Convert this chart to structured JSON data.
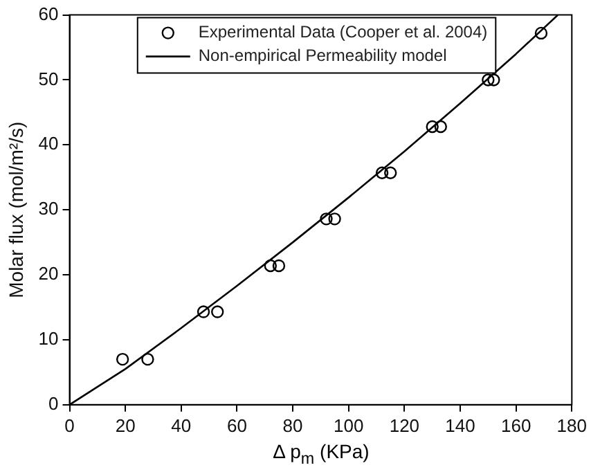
{
  "chart_data": {
    "type": "scatter",
    "xlabel": "Δ p$_{m}$ (KPa)",
    "ylabel": "Molar flux (mol/m²/s)",
    "xlim": [
      0,
      180
    ],
    "xticks": [
      0,
      20,
      40,
      60,
      80,
      100,
      120,
      140,
      160,
      180
    ],
    "ylim": [
      0,
      60
    ],
    "yticks": [
      0,
      10,
      20,
      30,
      40,
      50,
      60
    ],
    "grid": false,
    "legend": "top right",
    "marker": "circle",
    "series": [
      {
        "name": "Experimental Data (Cooper et al. 2004)",
        "color": "#000000",
        "x": [
          19,
          28,
          48,
          53,
          72,
          75,
          92,
          95,
          112,
          115,
          130,
          133,
          150,
          152,
          169
        ],
        "values": [
          7,
          7,
          14.3,
          14.3,
          21.4,
          21.4,
          28.6,
          28.6,
          35.7,
          35.7,
          42.8,
          42.8,
          50,
          50,
          57.2
        ]
      },
      {
        "name": "Non-empirical Permeability model",
        "type": "line",
        "color": "#000000",
        "marker": "none",
        "line_style": "solid",
        "x": [
          0,
          20,
          40,
          60,
          80,
          100,
          120,
          140,
          160,
          175
        ],
        "values": [
          0,
          5.5,
          11.8,
          18.3,
          25,
          31.9,
          39,
          46.4,
          54,
          60
        ]
      }
    ]
  }
}
